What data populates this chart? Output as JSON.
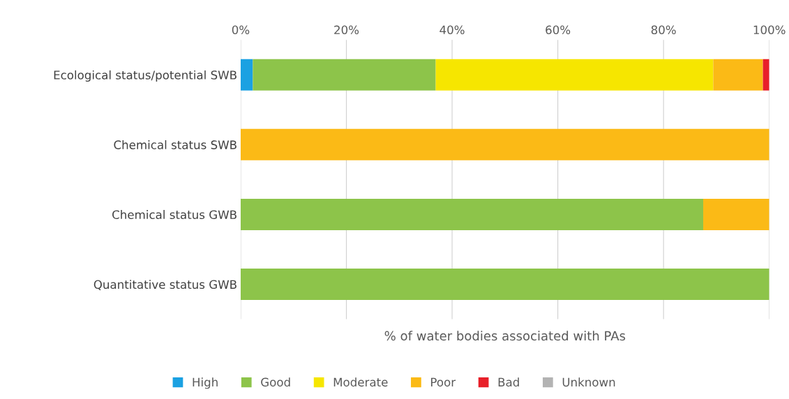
{
  "chart_data": {
    "type": "bar",
    "orientation": "horizontal",
    "stacked": true,
    "xlabel": "% of water bodies associated with PAs",
    "categories": [
      "Ecological status/potential SWB",
      "Chemical status SWB",
      "Chemical status GWB",
      "Quantitative status GWB"
    ],
    "series": [
      {
        "name": "High",
        "color": "#1ba1e2",
        "values": [
          2.3,
          0,
          0,
          0
        ]
      },
      {
        "name": "Good",
        "color": "#8dc44a",
        "values": [
          34.6,
          0,
          87.5,
          100
        ]
      },
      {
        "name": "Moderate",
        "color": "#f6e600",
        "values": [
          52.5,
          0,
          0,
          0
        ]
      },
      {
        "name": "Poor",
        "color": "#fbba16",
        "values": [
          9.4,
          100,
          12.5,
          0
        ]
      },
      {
        "name": "Bad",
        "color": "#e8202a",
        "values": [
          1.2,
          0,
          0,
          0
        ]
      },
      {
        "name": "Unknown",
        "color": "#b3b3b3",
        "values": [
          0,
          0,
          0,
          0
        ]
      }
    ],
    "xlim": [
      0,
      100
    ],
    "xticks": [
      {
        "value": 0,
        "label": "0%"
      },
      {
        "value": 20,
        "label": "20%"
      },
      {
        "value": 40,
        "label": "40%"
      },
      {
        "value": 60,
        "label": "60%"
      },
      {
        "value": 80,
        "label": "80%"
      },
      {
        "value": 100,
        "label": "100%"
      }
    ],
    "grid": "x",
    "legend": "bottom"
  }
}
